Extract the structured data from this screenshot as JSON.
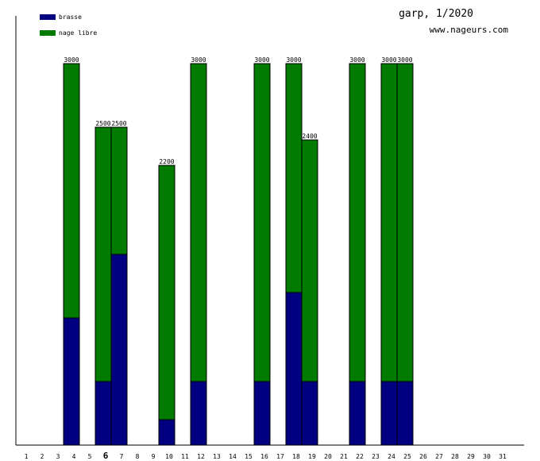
{
  "title": "garp, 1/2020",
  "subtitle": "www.nageurs.com",
  "legend": [
    {
      "label": "brasse",
      "color": "#000080"
    },
    {
      "label": "nage libre",
      "color": "#007b00"
    }
  ],
  "highlight_day": "6",
  "chart_data": {
    "type": "bar",
    "stacked": true,
    "categories": [
      "1",
      "2",
      "3",
      "4",
      "5",
      "6",
      "7",
      "8",
      "9",
      "10",
      "11",
      "12",
      "13",
      "14",
      "15",
      "16",
      "17",
      "18",
      "19",
      "20",
      "21",
      "22",
      "23",
      "24",
      "25",
      "26",
      "27",
      "28",
      "29",
      "30",
      "31"
    ],
    "series": [
      {
        "name": "brasse",
        "color": "#000080",
        "values": [
          0,
          0,
          1000,
          0,
          500,
          1500,
          0,
          0,
          200,
          0,
          500,
          0,
          0,
          0,
          500,
          0,
          1200,
          500,
          0,
          0,
          500,
          0,
          500,
          500,
          0,
          0,
          0,
          0,
          0,
          0,
          0
        ]
      },
      {
        "name": "nage libre",
        "color": "#007b00",
        "values": [
          0,
          0,
          2000,
          0,
          2000,
          1000,
          0,
          0,
          2000,
          0,
          2500,
          0,
          0,
          0,
          2500,
          0,
          1800,
          1900,
          0,
          0,
          2500,
          0,
          2500,
          2500,
          0,
          0,
          0,
          0,
          0,
          0,
          0
        ]
      }
    ],
    "totals": [
      0,
      0,
      3000,
      0,
      2500,
      2500,
      0,
      0,
      2200,
      0,
      3000,
      0,
      0,
      0,
      3000,
      0,
      3000,
      2400,
      0,
      0,
      3000,
      0,
      3000,
      3000,
      0,
      0,
      0,
      0,
      0,
      0,
      0
    ],
    "ylim": [
      0,
      3000
    ],
    "grid": false
  }
}
